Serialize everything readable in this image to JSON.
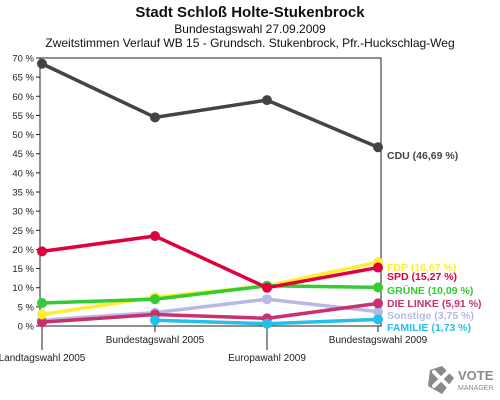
{
  "header": {
    "title": "Stadt Schloß Holte-Stukenbrock",
    "subtitle1": "Bundestagswahl 27.09.2009",
    "subtitle2": "Zweitstimmen Verlauf WB 15 - Grundsch. Stukenbrock, Pfr.-Huckschlag-Weg"
  },
  "logo": {
    "text": "VOTE",
    "subtext": "MANAGER",
    "icon": "x-ballot-icon"
  },
  "chart_data": {
    "type": "line",
    "categories": [
      "Landtagswahl 2005",
      "Bundestagswahl 2005",
      "Europawahl 2009",
      "Bundestagswahl 2009"
    ],
    "ylim": [
      0,
      70
    ],
    "yticks": [
      "0 %",
      "5 %",
      "10 %",
      "15 %",
      "20 %",
      "25 %",
      "30 %",
      "35 %",
      "40 %",
      "45 %",
      "50 %",
      "55 %",
      "60 %",
      "65 %",
      "70 %"
    ],
    "grid": false,
    "series": [
      {
        "name": "Sonstige",
        "color": "#b8b8e6",
        "values": [
          1.5,
          3.5,
          7.0,
          3.75
        ],
        "label": "Sonstige (3,75 %)"
      },
      {
        "name": "DIE LINKE",
        "color": "#c8306e",
        "values": [
          1.0,
          3.0,
          2.0,
          5.91
        ],
        "label": "DIE LINKE (5,91 %)"
      },
      {
        "name": "FAMILIE",
        "color": "#22c0ea",
        "values": [
          null,
          1.5,
          0.6,
          1.73
        ],
        "label": "FAMILIE (1,73 %)"
      },
      {
        "name": "FDP",
        "color": "#ffec33",
        "values": [
          3.0,
          7.5,
          10.5,
          16.67
        ],
        "label": "FDP (16,67 %)"
      },
      {
        "name": "GRÜNE",
        "color": "#33cc33",
        "values": [
          6.0,
          7.0,
          10.5,
          10.09
        ],
        "label": "GRÜNE (10,09 %)"
      },
      {
        "name": "SPD",
        "color": "#e0003c",
        "values": [
          19.5,
          23.5,
          10.0,
          15.27
        ],
        "label": "SPD (15,27 %)"
      },
      {
        "name": "CDU",
        "color": "#444444",
        "values": [
          68.5,
          54.5,
          59.0,
          46.69
        ],
        "label": "CDU (46,69 %)"
      }
    ]
  }
}
